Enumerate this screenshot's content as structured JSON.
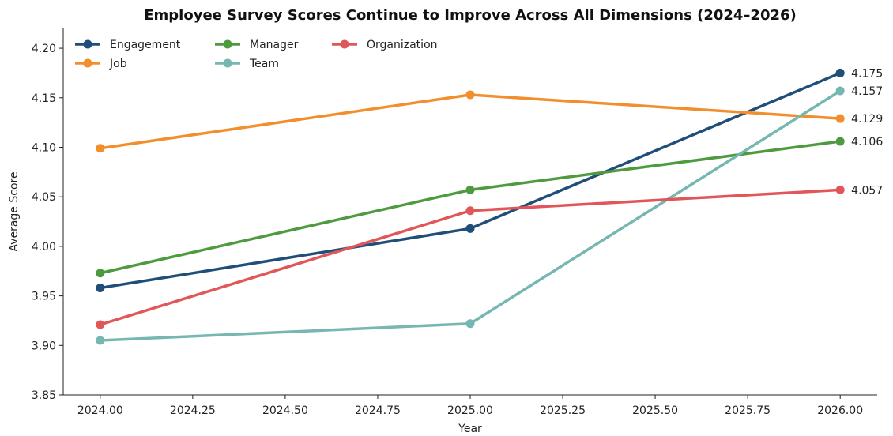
{
  "chart_data": {
    "type": "line",
    "title": "Employee Survey Scores Continue to Improve Across All Dimensions (2024–2026)",
    "xlabel": "Year",
    "ylabel": "Average Score",
    "xlim": [
      2023.9,
      2026.1
    ],
    "ylim": [
      3.85,
      4.22
    ],
    "x_ticks": [
      "2024.00",
      "2024.25",
      "2024.50",
      "2024.75",
      "2025.00",
      "2025.25",
      "2025.50",
      "2025.75",
      "2026.00"
    ],
    "y_ticks": [
      "3.85",
      "3.90",
      "3.95",
      "4.00",
      "4.05",
      "4.10",
      "4.15",
      "4.20"
    ],
    "grid": false,
    "legend_position": "top-left",
    "x": [
      2024,
      2025,
      2026
    ],
    "series": [
      {
        "name": "Engagement",
        "color": "#1f4e79",
        "values": [
          3.958,
          4.018,
          4.175
        ]
      },
      {
        "name": "Job",
        "color": "#f28e2b",
        "values": [
          4.099,
          4.153,
          4.129
        ]
      },
      {
        "name": "Manager",
        "color": "#4e9a3f",
        "values": [
          3.973,
          4.057,
          4.106
        ]
      },
      {
        "name": "Team",
        "color": "#76b7b2",
        "values": [
          3.905,
          3.922,
          4.157
        ]
      },
      {
        "name": "Organization",
        "color": "#e15759",
        "values": [
          3.921,
          4.036,
          4.057
        ]
      }
    ],
    "end_labels": [
      "4.175",
      "4.157",
      "4.129",
      "4.106",
      "4.057"
    ]
  }
}
